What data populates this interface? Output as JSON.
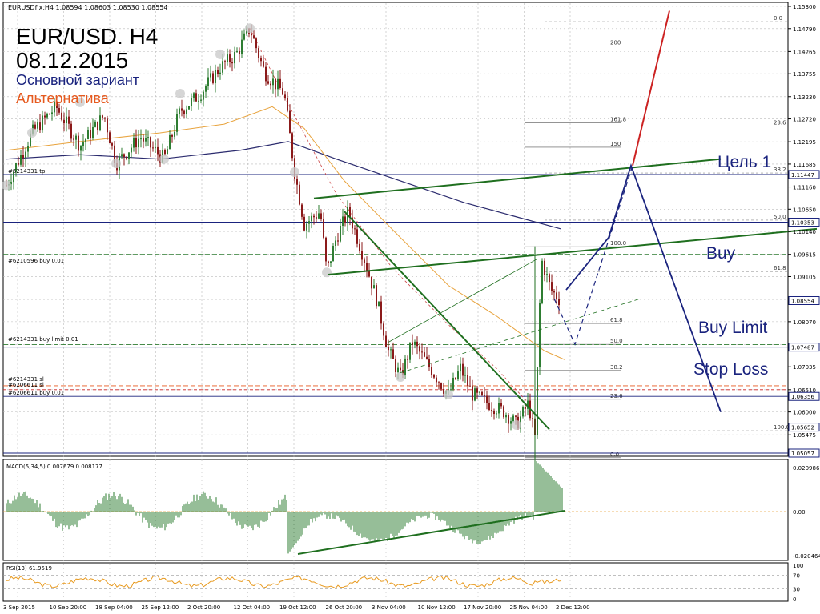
{
  "window": {
    "symbol_line": "EURUSDfix,H4  1.08594 1.08603 1.08530 1.08554"
  },
  "overlay": {
    "title": "EUR/USD. H4",
    "date": "08.12.2015",
    "main_variant": "Основной зариант",
    "alternative": "Альтернатива"
  },
  "annotations": {
    "target1": "Цель 1",
    "buy": "Buy",
    "buy_limit": "Buy Limit",
    "stop_loss": "Stop Loss"
  },
  "order_labels": {
    "tp": "#6214331 tp",
    "buy1": "#6210596 buy 0.01",
    "buy_limit": "#6214331 buy limit 0.01",
    "sl1": "#6214331 sl",
    "sl2": "#6206611 sl",
    "buy2": "#6206611 buy 0.01"
  },
  "price_axis": {
    "ticks": [
      "1.15300",
      "1.14790",
      "1.14265",
      "1.13755",
      "1.13230",
      "1.12720",
      "1.12195",
      "1.11685",
      "1.11160",
      "1.10650",
      "1.10140",
      "1.09615",
      "1.09105",
      "1.08580",
      "1.08070",
      "1.07545",
      "1.07035",
      "1.06510",
      "1.06000",
      "1.05475"
    ],
    "highlighted": [
      "1.11447",
      "1.10353",
      "1.08554",
      "1.07487",
      "1.06356",
      "1.05652",
      "1.05057"
    ]
  },
  "macd": {
    "label": "MACD(5,34,5)  0.007679  0.008177",
    "ticks": [
      "0.020986",
      "0.00",
      "-0.020464"
    ]
  },
  "rsi": {
    "label": "RSI(13) 61.9519",
    "ticks": [
      "100",
      "70",
      "30",
      "0"
    ]
  },
  "fib_left": {
    "levels": [
      "0.0",
      "23.6",
      "38.2",
      "50.0",
      "61.8",
      "100.0"
    ]
  },
  "fib_right": {
    "levels": [
      "200",
      "161.8",
      "150",
      "100.0",
      "61.8",
      "50.0",
      "38.2",
      "23.6",
      "0.0"
    ]
  },
  "time_axis": {
    "labels": [
      "3 Sep 2015",
      "10 Sep 20:00",
      "18 Sep 04:00",
      "25 Sep 12:00",
      "2 Oct 20:00",
      "12 Oct 04:00",
      "19 Oct 12:00",
      "26 Oct 20:00",
      "3 Nov 04:00",
      "10 Nov 12:00",
      "17 Nov 20:00",
      "25 Nov 04:00",
      "2 Dec 12:00"
    ]
  },
  "colors": {
    "bull_candle": "#2e7d32",
    "bear_candle": "#8b1a1a",
    "ma_blue": "#2b2b6e",
    "ma_orange": "#e8a33d",
    "trend_green": "#1f6f1f",
    "scenario_blue": "#1a237e",
    "alt_red": "#cc2222",
    "label_orange": "#e65a1f",
    "label_blue": "#1a237e",
    "highlight_box": "#1a237e"
  }
}
